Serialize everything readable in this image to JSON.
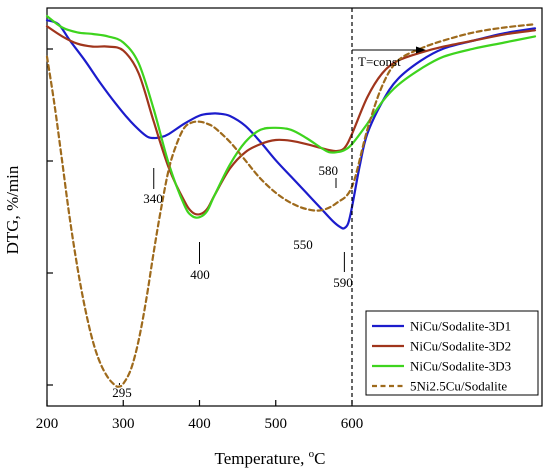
{
  "chart_data": {
    "type": "line",
    "title": "",
    "xlabel": "Temperature, °C",
    "xlabel_main": "Temperature, ",
    "xlabel_sup": "o",
    "xlabel_unit": "C",
    "ylabel": "DTG, %/min",
    "xlim": [
      200,
      840
    ],
    "x_ticks": [
      200,
      300,
      400,
      500,
      600
    ],
    "y_ticks_labeled": false,
    "isothermal_marker": {
      "x": 600,
      "label": "T=const"
    },
    "legend_position": "bottom-right",
    "series": [
      {
        "name": "NiCu/Sodalite-3D1",
        "color": "#1c1ccc",
        "style": "solid",
        "x": [
          200,
          215,
          230,
          250,
          270,
          290,
          310,
          330,
          340,
          350,
          360,
          380,
          400,
          415,
          425,
          440,
          460,
          480,
          500,
          520,
          540,
          560,
          575,
          585,
          590,
          595,
          600,
          610,
          620,
          640,
          660,
          690,
          720,
          760,
          800,
          840
        ],
        "y": [
          -0.3,
          -0.4,
          -0.8,
          -1.3,
          -1.85,
          -2.35,
          -2.8,
          -3.15,
          -3.2,
          -3.18,
          -3.1,
          -2.85,
          -2.65,
          -2.6,
          -2.6,
          -2.66,
          -2.9,
          -3.3,
          -3.75,
          -4.15,
          -4.55,
          -4.95,
          -5.25,
          -5.4,
          -5.42,
          -5.3,
          -4.9,
          -3.9,
          -3.1,
          -2.3,
          -1.75,
          -1.3,
          -1.0,
          -0.8,
          -0.62,
          -0.5
        ]
      },
      {
        "name": "NiCu/Sodalite-3D2",
        "color": "#a0351c",
        "style": "solid",
        "x": [
          200,
          220,
          240,
          260,
          280,
          300,
          320,
          340,
          360,
          380,
          390,
          400,
          410,
          420,
          440,
          460,
          480,
          500,
          520,
          540,
          560,
          570,
          580,
          590,
          600,
          620,
          640,
          660,
          690,
          720,
          760,
          800,
          840
        ],
        "y": [
          -0.45,
          -0.7,
          -0.88,
          -0.95,
          -0.95,
          -1.05,
          -1.6,
          -2.8,
          -3.95,
          -4.75,
          -5.02,
          -5.08,
          -4.95,
          -4.6,
          -3.95,
          -3.55,
          -3.35,
          -3.25,
          -3.27,
          -3.35,
          -3.45,
          -3.5,
          -3.52,
          -3.45,
          -3.1,
          -2.2,
          -1.6,
          -1.3,
          -1.1,
          -0.95,
          -0.8,
          -0.65,
          -0.55
        ]
      },
      {
        "name": "NiCu/Sodalite-3D3",
        "color": "#3ed41e",
        "style": "solid",
        "x": [
          200,
          220,
          240,
          260,
          280,
          300,
          320,
          340,
          360,
          380,
          390,
          400,
          410,
          420,
          440,
          460,
          480,
          500,
          520,
          540,
          560,
          570,
          580,
          590,
          600,
          620,
          640,
          660,
          690,
          720,
          760,
          800,
          840
        ],
        "y": [
          -0.2,
          -0.48,
          -0.6,
          -0.64,
          -0.7,
          -0.85,
          -1.35,
          -2.5,
          -3.85,
          -4.85,
          -5.12,
          -5.15,
          -5.0,
          -4.6,
          -3.85,
          -3.3,
          -3.0,
          -2.95,
          -3.0,
          -3.2,
          -3.45,
          -3.55,
          -3.55,
          -3.5,
          -3.35,
          -2.85,
          -2.3,
          -1.9,
          -1.5,
          -1.2,
          -1.0,
          -0.85,
          -0.7
        ]
      },
      {
        "name": "5Ni2.5Cu/Sodalite",
        "color": "#9e6a1c",
        "style": "dashed",
        "x": [
          200,
          210,
          220,
          230,
          240,
          250,
          260,
          270,
          280,
          290,
          295,
          300,
          310,
          320,
          330,
          340,
          350,
          360,
          370,
          380,
          390,
          400,
          410,
          420,
          440,
          460,
          480,
          500,
          520,
          540,
          560,
          580,
          600,
          620,
          640,
          660,
          690,
          720,
          760,
          800,
          840
        ],
        "y": [
          -1.2,
          -2.4,
          -3.8,
          -5.2,
          -6.4,
          -7.4,
          -8.2,
          -8.75,
          -9.1,
          -9.3,
          -9.32,
          -9.25,
          -8.9,
          -8.2,
          -7.2,
          -6.0,
          -4.9,
          -3.95,
          -3.35,
          -2.95,
          -2.82,
          -2.8,
          -2.85,
          -2.95,
          -3.3,
          -3.75,
          -4.2,
          -4.55,
          -4.8,
          -4.95,
          -4.98,
          -4.8,
          -4.4,
          -3.0,
          -1.9,
          -1.3,
          -1.0,
          -0.8,
          -0.6,
          -0.48,
          -0.4
        ]
      }
    ],
    "annotations": [
      {
        "text": "340",
        "x": 340,
        "y": -3.2
      },
      {
        "text": "400",
        "x": 400,
        "y": -5.15
      },
      {
        "text": "295",
        "x": 295,
        "y": -9.32
      },
      {
        "text": "550",
        "x": 550,
        "y": -4.98
      },
      {
        "text": "580",
        "x": 580,
        "y": -3.55
      },
      {
        "text": "590",
        "x": 590,
        "y": -5.42
      }
    ]
  }
}
